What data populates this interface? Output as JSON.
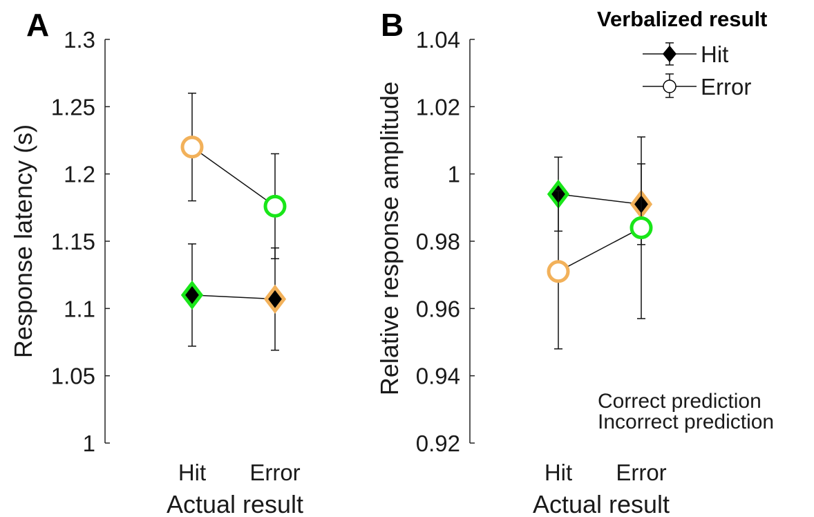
{
  "colors": {
    "correct": "#19e619",
    "incorrect": "#f2b15a",
    "marker_fill_hit": "#000000",
    "marker_fill_error": "#ffffff",
    "axis": "#222222"
  },
  "legend": {
    "title": "Verbalized result",
    "hit_label": "Hit",
    "error_label": "Error"
  },
  "annotations": {
    "correct": "Correct prediction",
    "incorrect": "Incorrect prediction"
  },
  "chart_data": [
    {
      "panel": "A",
      "type": "line",
      "xlabel": "Actual result",
      "ylabel": "Response latency (s)",
      "categories": [
        "Hit",
        "Error"
      ],
      "ylim": [
        1,
        1.3
      ],
      "yticks": [
        "1",
        "1.05",
        "1.1",
        "1.15",
        "1.2",
        "1.25",
        "1.3"
      ],
      "series": [
        {
          "name": "Hit",
          "marker": "diamond",
          "values": [
            1.11,
            1.107
          ],
          "err_low": [
            1.072,
            1.069
          ],
          "err_high": [
            1.148,
            1.145
          ],
          "prediction": [
            "correct",
            "incorrect"
          ]
        },
        {
          "name": "Error",
          "marker": "circle",
          "values": [
            1.22,
            1.176
          ],
          "err_low": [
            1.18,
            1.137
          ],
          "err_high": [
            1.26,
            1.215
          ],
          "prediction": [
            "incorrect",
            "correct"
          ]
        }
      ]
    },
    {
      "panel": "B",
      "type": "line",
      "xlabel": "Actual result",
      "ylabel": "Relative response amplitude",
      "categories": [
        "Hit",
        "Error"
      ],
      "ylim": [
        0.92,
        1.04
      ],
      "yticks": [
        "0.92",
        "0.94",
        "0.96",
        "0.98",
        "1",
        "1.02",
        "1.04"
      ],
      "series": [
        {
          "name": "Hit",
          "marker": "diamond",
          "values": [
            0.994,
            0.991
          ],
          "err_low": [
            0.983,
            0.979
          ],
          "err_high": [
            1.005,
            1.003
          ],
          "prediction": [
            "correct",
            "incorrect"
          ]
        },
        {
          "name": "Error",
          "marker": "circle",
          "values": [
            0.971,
            0.984
          ],
          "err_low": [
            0.948,
            0.957
          ],
          "err_high": [
            0.995,
            1.011
          ],
          "prediction": [
            "incorrect",
            "correct"
          ]
        }
      ]
    }
  ]
}
